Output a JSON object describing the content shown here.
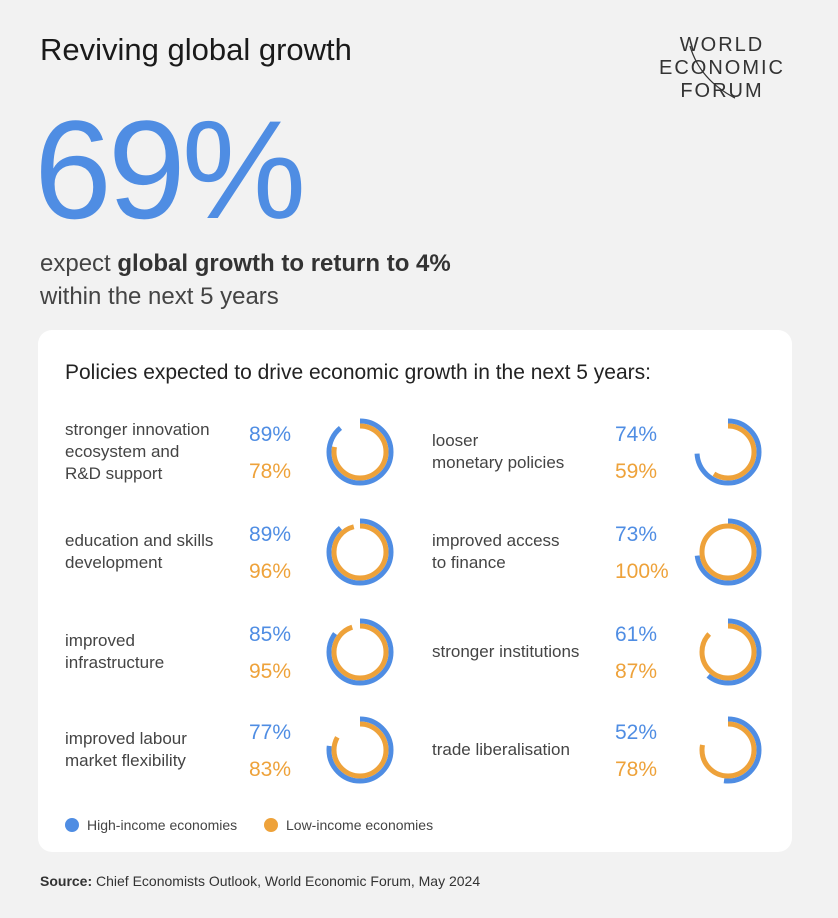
{
  "title": "Reviving global growth",
  "logo": [
    "WORLD",
    "ECONOMIC",
    "FORUM"
  ],
  "headline": "69%",
  "subtitle": {
    "before": "expect ",
    "bold": "global growth to return to 4%",
    "line2": "within the next 5 years"
  },
  "chart_data": {
    "type": "ring",
    "title": "Policies expected to drive economic growth in the next 5 years:",
    "categories": [
      "stronger innovation\necosystem and\nR&D support",
      "education and skills\ndevelopment",
      "improved\ninfrastructure",
      "improved labour\nmarket flexibility",
      "looser\nmonetary policies",
      "improved access\nto finance",
      "stronger institutions",
      "trade liberalisation"
    ],
    "ylim": [
      0,
      100
    ],
    "series": [
      {
        "name": "High-income economies",
        "color": "#4f8de3",
        "values": [
          89,
          89,
          85,
          77,
          74,
          73,
          61,
          52
        ],
        "value_labels": [
          "89%",
          "89%",
          "85%",
          "77%",
          "74%",
          "73%",
          "61%",
          "52%"
        ]
      },
      {
        "name": "Low-income economies",
        "color": "#eea23a",
        "values": [
          78,
          96,
          95,
          83,
          59,
          100,
          87,
          78
        ],
        "value_labels": [
          "78%",
          "96%",
          "95%",
          "83%",
          "59%",
          "100%",
          "87%",
          "78%"
        ]
      }
    ]
  },
  "source": {
    "label": "Source:",
    "text": " Chief Economists Outlook, World Economic Forum, May 2024"
  }
}
